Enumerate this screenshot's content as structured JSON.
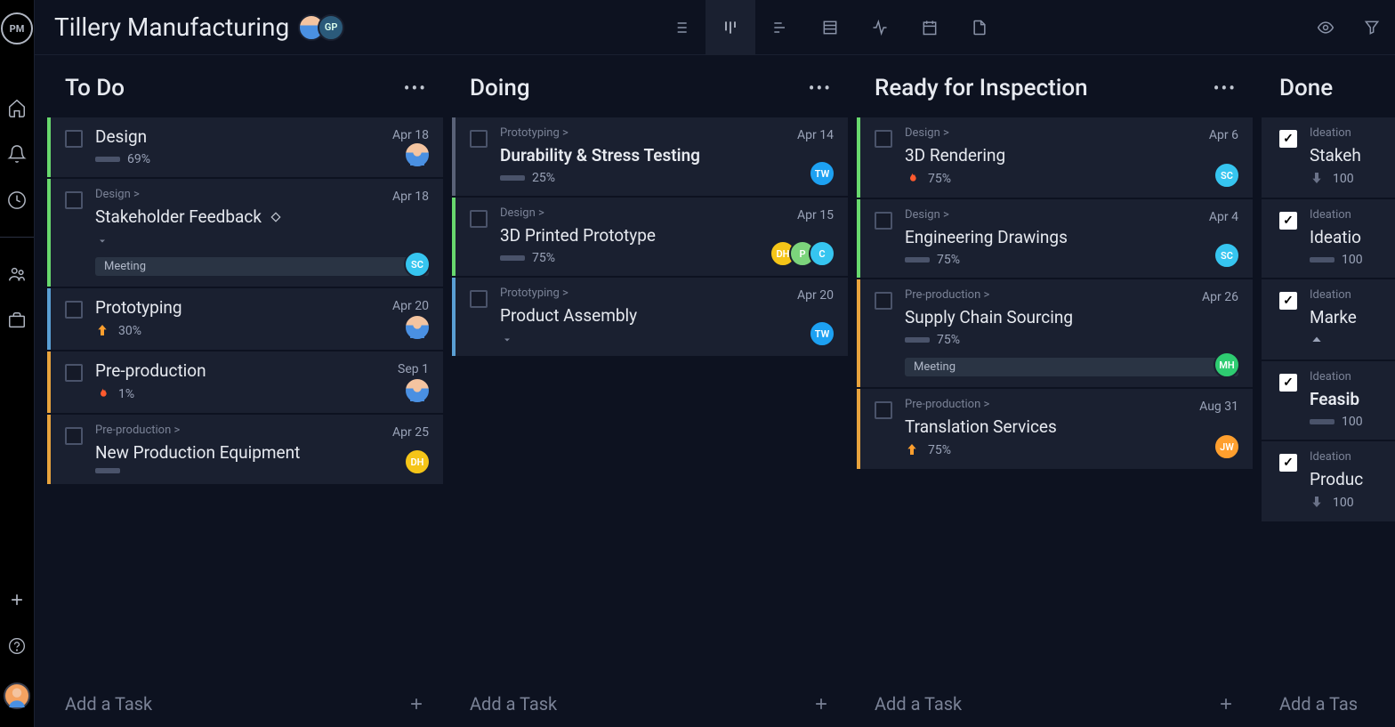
{
  "project": {
    "title": "Tillery Manufacturing"
  },
  "avatars": {
    "gp": "GP"
  },
  "columns": [
    {
      "title": "To Do",
      "add_label": "Add a Task",
      "cards": [
        {
          "title": "Design",
          "pct": "69%",
          "date": "Apr 18",
          "border": "border-green",
          "assignees": [
            {
              "cls": "person",
              "text": ""
            }
          ],
          "priority": "bar"
        },
        {
          "breadcrumb": "Design >",
          "title": "Stakeholder Feedback",
          "diamond": true,
          "date": "Apr 18",
          "border": "border-green",
          "assignees": [
            {
              "bg": "#36c5f0",
              "text": "SC"
            }
          ],
          "expand": true,
          "tags": [
            "Meeting"
          ]
        },
        {
          "title": "Prototyping",
          "pct": "30%",
          "date": "Apr 20",
          "border": "border-blue",
          "assignees": [
            {
              "cls": "person",
              "text": ""
            }
          ],
          "priority": "arrow-up"
        },
        {
          "title": "Pre-production",
          "pct": "1%",
          "date": "Sep 1",
          "border": "border-orange",
          "assignees": [
            {
              "cls": "person",
              "text": ""
            }
          ],
          "priority": "flame"
        },
        {
          "breadcrumb": "Pre-production >",
          "title": "New Production Equipment",
          "date": "Apr 25",
          "border": "border-orange",
          "assignees": [
            {
              "bg": "#f5c518",
              "text": "DH"
            }
          ],
          "priority": "bar"
        }
      ]
    },
    {
      "title": "Doing",
      "add_label": "Add a Task",
      "cards": [
        {
          "breadcrumb": "Prototyping >",
          "title": "Durability & Stress Testing",
          "bold": true,
          "pct": "25%",
          "date": "Apr 14",
          "border": "border-grey",
          "assignees": [
            {
              "bg": "#1da1f2",
              "text": "TW"
            }
          ],
          "priority": "bar"
        },
        {
          "breadcrumb": "Design >",
          "title": "3D Printed Prototype",
          "pct": "75%",
          "date": "Apr 15",
          "border": "border-green",
          "assignees": [
            {
              "bg": "#f5c518",
              "text": "DH"
            },
            {
              "bg": "#7cd47c",
              "text": "P"
            },
            {
              "bg": "#36c5f0",
              "text": "C"
            }
          ],
          "priority": "bar"
        },
        {
          "breadcrumb": "Prototyping >",
          "title": "Product Assembly",
          "date": "Apr 20",
          "border": "border-blue",
          "assignees": [
            {
              "bg": "#1da1f2",
              "text": "TW"
            }
          ],
          "expand": true
        }
      ]
    },
    {
      "title": "Ready for Inspection",
      "add_label": "Add a Task",
      "cards": [
        {
          "breadcrumb": "Design >",
          "title": "3D Rendering",
          "pct": "75%",
          "date": "Apr 6",
          "border": "border-green",
          "assignees": [
            {
              "bg": "#36c5f0",
              "text": "SC"
            }
          ],
          "priority": "flame"
        },
        {
          "breadcrumb": "Design >",
          "title": "Engineering Drawings",
          "pct": "75%",
          "date": "Apr 4",
          "border": "border-green",
          "assignees": [
            {
              "bg": "#36c5f0",
              "text": "SC"
            }
          ],
          "priority": "bar"
        },
        {
          "breadcrumb": "Pre-production >",
          "title": "Supply Chain Sourcing",
          "pct": "75%",
          "date": "Apr 26",
          "border": "border-orange",
          "assignees": [
            {
              "bg": "#2ecc71",
              "text": "MH"
            }
          ],
          "priority": "bar",
          "tags": [
            "Meeting"
          ]
        },
        {
          "breadcrumb": "Pre-production >",
          "title": "Translation Services",
          "pct": "75%",
          "date": "Aug 31",
          "border": "border-orange",
          "assignees": [
            {
              "bg": "#ff9f2e",
              "text": "JW"
            }
          ],
          "priority": "arrow-up"
        }
      ]
    },
    {
      "title": "Done",
      "add_label": "Add a Tas",
      "cards": [
        {
          "breadcrumb": "Ideation",
          "title": "Stakeh",
          "pct": "100",
          "checked": true,
          "priority": "arrow-down"
        },
        {
          "breadcrumb": "Ideation",
          "title": "Ideatio",
          "pct": "100",
          "checked": true,
          "priority": "bar"
        },
        {
          "breadcrumb": "Ideation",
          "title": "Marke",
          "checked": true,
          "priority": "arrow-up-sm"
        },
        {
          "breadcrumb": "Ideation",
          "title": "Feasib",
          "bold": true,
          "pct": "100",
          "checked": true,
          "priority": "bar"
        },
        {
          "breadcrumb": "Ideation",
          "title": "Produc",
          "pct": "100",
          "checked": true,
          "priority": "arrow-down"
        }
      ]
    }
  ]
}
